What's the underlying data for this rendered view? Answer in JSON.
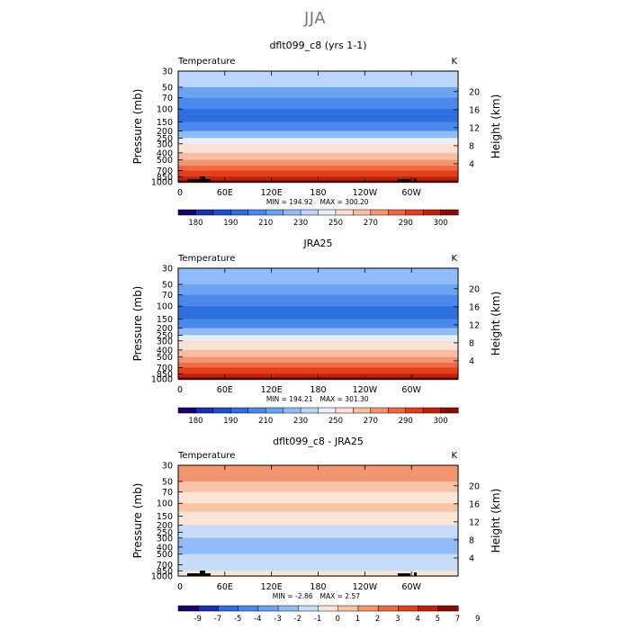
{
  "page_title": "JJA",
  "chart_data": [
    {
      "type": "heatmap",
      "title": "dflt099_c8 (yrs 1-1)",
      "variable": "Temperature",
      "units": "K",
      "ylabel_left": "Pressure (mb)",
      "ylabel_right": "Height (km)",
      "pressure_ticks": [
        "30",
        "50",
        "70",
        "100",
        "150",
        "200",
        "250",
        "300",
        "400",
        "500",
        "700",
        "850",
        "1000"
      ],
      "height_ticks": [
        "20",
        "16",
        "12",
        "8",
        "4"
      ],
      "x_ticks": [
        "0",
        "60E",
        "120E",
        "180",
        "120W",
        "60W"
      ],
      "min_label": "MIN = 194.92",
      "max_label": "MAX = 300.20",
      "min": 194.92,
      "max": 300.2,
      "levels": [
        175,
        180,
        185,
        190,
        200,
        210,
        220,
        230,
        240,
        250,
        260,
        270,
        280,
        290,
        295,
        300,
        305
      ],
      "bands": [
        {
          "pressure": 30,
          "level": 7
        },
        {
          "pressure": 50,
          "level": 5
        },
        {
          "pressure": 70,
          "level": 4
        },
        {
          "pressure": 100,
          "level": 3
        },
        {
          "pressure": 130,
          "level": 3
        },
        {
          "pressure": 150,
          "level": 4
        },
        {
          "pressure": 200,
          "level": 6
        },
        {
          "pressure": 250,
          "level": 8
        },
        {
          "pressure": 300,
          "level": 9
        },
        {
          "pressure": 400,
          "level": 10
        },
        {
          "pressure": 500,
          "level": 11
        },
        {
          "pressure": 600,
          "level": 12
        },
        {
          "pressure": 700,
          "level": 13
        },
        {
          "pressure": 850,
          "level": 14
        },
        {
          "pressure": 950,
          "level": 15
        },
        {
          "pressure": 1000,
          "level": 15
        }
      ],
      "colorbar_labels": [
        "180",
        "190",
        "210",
        "230",
        "250",
        "270",
        "290",
        "300"
      ]
    },
    {
      "type": "heatmap",
      "title": "JRA25",
      "variable": "Temperature",
      "units": "K",
      "ylabel_left": "Pressure (mb)",
      "ylabel_right": "Height (km)",
      "pressure_ticks": [
        "30",
        "50",
        "70",
        "100",
        "150",
        "200",
        "250",
        "300",
        "400",
        "500",
        "700",
        "850",
        "1000"
      ],
      "height_ticks": [
        "20",
        "16",
        "12",
        "8",
        "4"
      ],
      "x_ticks": [
        "0",
        "60E",
        "120E",
        "180",
        "120W",
        "60W"
      ],
      "min_label": "MIN = 194.21",
      "max_label": "MAX = 301.30",
      "min": 194.21,
      "max": 301.3,
      "levels": [
        175,
        180,
        185,
        190,
        200,
        210,
        220,
        230,
        240,
        250,
        260,
        270,
        280,
        290,
        295,
        300,
        305
      ],
      "bands": [
        {
          "pressure": 30,
          "level": 6
        },
        {
          "pressure": 50,
          "level": 5
        },
        {
          "pressure": 70,
          "level": 4
        },
        {
          "pressure": 100,
          "level": 3
        },
        {
          "pressure": 130,
          "level": 3
        },
        {
          "pressure": 150,
          "level": 4
        },
        {
          "pressure": 200,
          "level": 6
        },
        {
          "pressure": 250,
          "level": 8
        },
        {
          "pressure": 300,
          "level": 9
        },
        {
          "pressure": 400,
          "level": 10
        },
        {
          "pressure": 500,
          "level": 11
        },
        {
          "pressure": 600,
          "level": 12
        },
        {
          "pressure": 700,
          "level": 13
        },
        {
          "pressure": 850,
          "level": 14
        },
        {
          "pressure": 950,
          "level": 15
        },
        {
          "pressure": 1000,
          "level": 15
        }
      ],
      "colorbar_labels": [
        "180",
        "190",
        "210",
        "230",
        "250",
        "270",
        "290",
        "300"
      ]
    },
    {
      "type": "heatmap",
      "title": "dflt099_c8 - JRA25",
      "variable": "Temperature",
      "units": "K",
      "ylabel_left": "Pressure (mb)",
      "ylabel_right": "Height (km)",
      "pressure_ticks": [
        "30",
        "50",
        "70",
        "100",
        "150",
        "200",
        "250",
        "300",
        "400",
        "500",
        "700",
        "850",
        "1000"
      ],
      "height_ticks": [
        "20",
        "16",
        "12",
        "8",
        "4"
      ],
      "x_ticks": [
        "0",
        "60E",
        "120E",
        "180",
        "120W",
        "60W"
      ],
      "min_label": "MIN = -2.86",
      "max_label": "MAX = 2.57",
      "min": -2.86,
      "max": 2.57,
      "levels": [
        -9,
        -7,
        -5,
        -4,
        -3,
        -2,
        -1,
        0,
        1,
        2,
        3,
        4,
        5,
        7,
        9
      ],
      "bands": [
        {
          "pressure": 30,
          "level": 9
        },
        {
          "pressure": 50,
          "level": 8
        },
        {
          "pressure": 70,
          "level": 7
        },
        {
          "pressure": 100,
          "level": 8
        },
        {
          "pressure": 130,
          "level": 7
        },
        {
          "pressure": 200,
          "level": 6
        },
        {
          "pressure": 300,
          "level": 5
        },
        {
          "pressure": 400,
          "level": 5
        },
        {
          "pressure": 500,
          "level": 6
        },
        {
          "pressure": 700,
          "level": 6
        },
        {
          "pressure": 850,
          "level": 7
        },
        {
          "pressure": 1000,
          "level": 7
        }
      ],
      "colorbar_labels": [
        "-9",
        "-7",
        "-5",
        "-4",
        "-3",
        "-2",
        "-1",
        "0",
        "1",
        "2",
        "3",
        "4",
        "5",
        "7",
        "9"
      ]
    }
  ]
}
